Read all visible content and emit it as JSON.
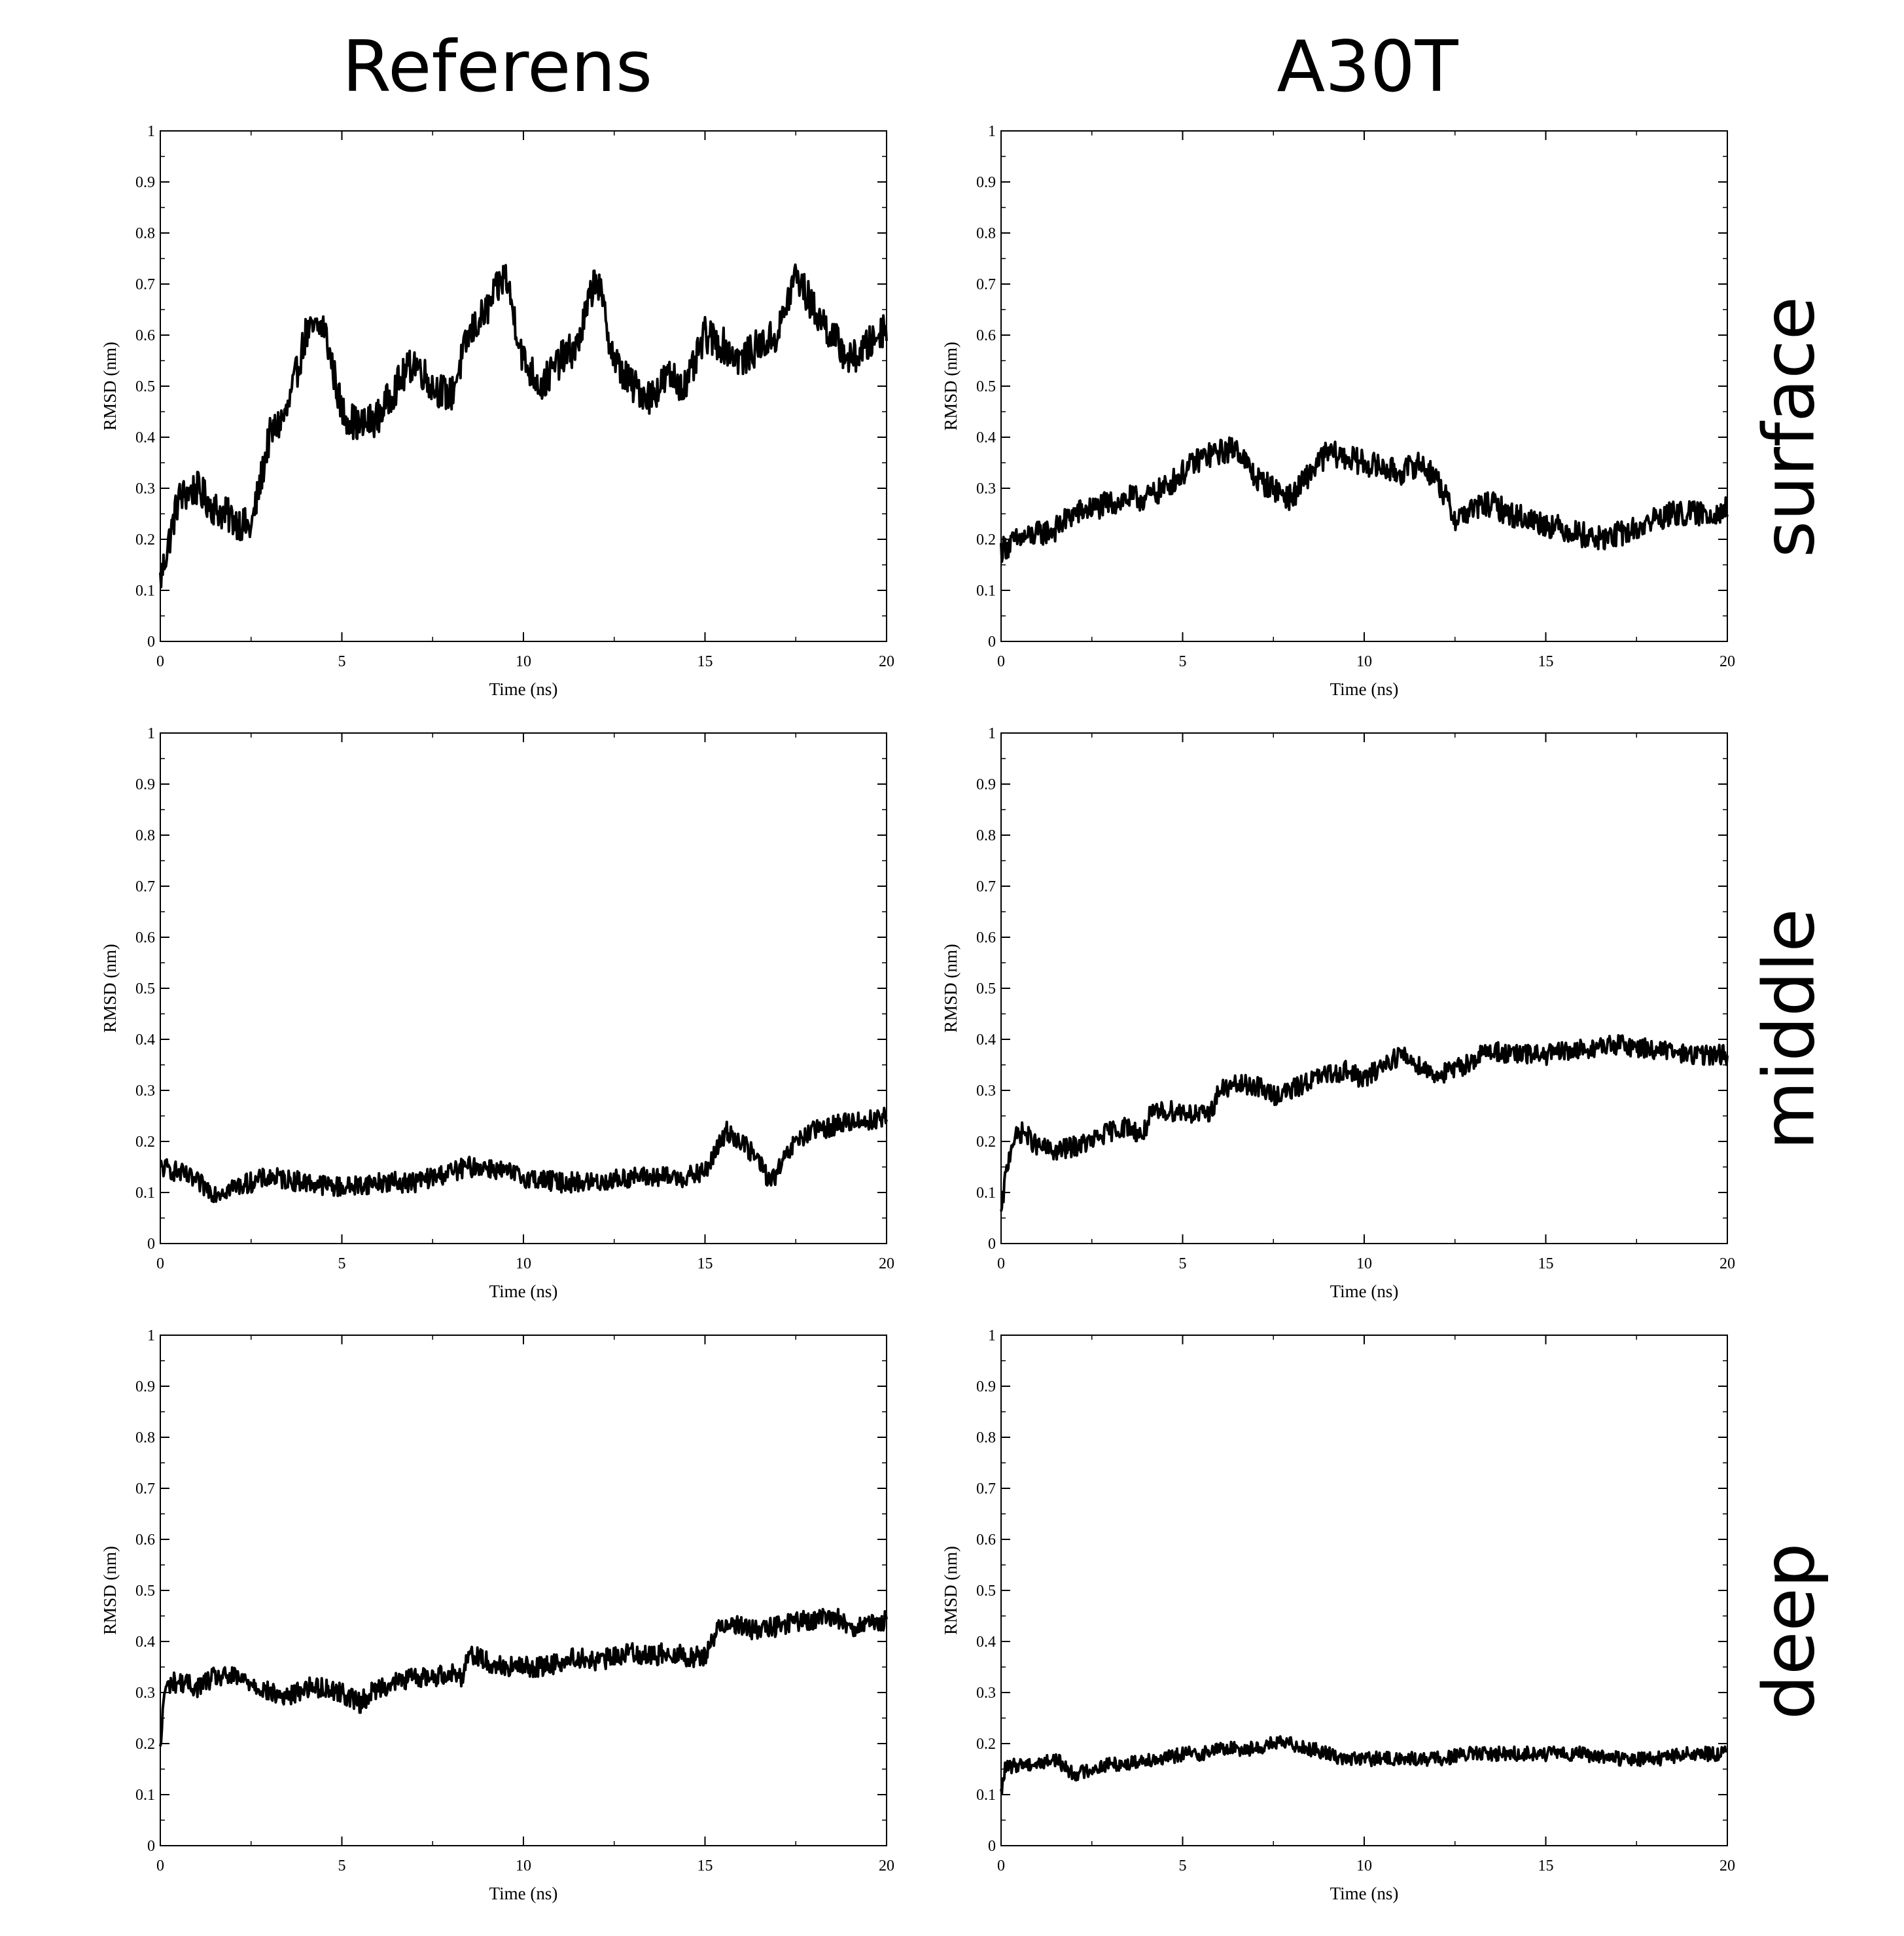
{
  "columns": [
    "Referens",
    "A30T"
  ],
  "rows": [
    "surface",
    "middle",
    "deep"
  ],
  "line_color": "#000000",
  "chart_data": [
    {
      "id": "referens-surface",
      "type": "line",
      "column": "Referens",
      "row": "surface",
      "xlabel": "Time (ns)",
      "ylabel": "RMSD (nm)",
      "xlim": [
        0,
        20
      ],
      "ylim": [
        0,
        1
      ],
      "xticks": [
        0,
        5,
        10,
        15,
        20
      ],
      "yticks": [
        0,
        0.1,
        0.2,
        0.3,
        0.4,
        0.5,
        0.6,
        0.7,
        0.8,
        0.9,
        1
      ],
      "x": [
        0,
        0.25,
        0.5,
        1,
        1.5,
        2,
        2.5,
        3,
        3.5,
        4,
        4.5,
        5,
        5.5,
        6,
        6.5,
        7,
        7.5,
        8,
        8.5,
        9,
        9.5,
        10,
        10.5,
        11,
        11.5,
        12,
        12.5,
        13,
        13.5,
        14,
        14.5,
        15,
        15.5,
        16,
        16.5,
        17,
        17.5,
        18,
        18.5,
        19,
        19.5,
        20
      ],
      "values": [
        0.12,
        0.2,
        0.28,
        0.3,
        0.26,
        0.24,
        0.22,
        0.4,
        0.45,
        0.6,
        0.62,
        0.45,
        0.42,
        0.44,
        0.5,
        0.55,
        0.5,
        0.48,
        0.6,
        0.65,
        0.72,
        0.55,
        0.5,
        0.55,
        0.58,
        0.72,
        0.55,
        0.5,
        0.48,
        0.52,
        0.5,
        0.6,
        0.58,
        0.55,
        0.58,
        0.6,
        0.72,
        0.65,
        0.6,
        0.55,
        0.58,
        0.62
      ],
      "noise": 0.035
    },
    {
      "id": "a30t-surface",
      "type": "line",
      "column": "A30T",
      "row": "surface",
      "xlabel": "Time (ns)",
      "ylabel": "RMSD (nm)",
      "xlim": [
        0,
        20
      ],
      "ylim": [
        0,
        1
      ],
      "xticks": [
        0,
        5,
        10,
        15,
        20
      ],
      "yticks": [
        0,
        0.1,
        0.2,
        0.3,
        0.4,
        0.5,
        0.6,
        0.7,
        0.8,
        0.9,
        1
      ],
      "x": [
        0,
        0.5,
        1,
        1.5,
        2,
        2.5,
        3,
        3.5,
        4,
        4.5,
        5,
        5.5,
        6,
        6.5,
        7,
        7.5,
        8,
        8.5,
        9,
        9.5,
        10,
        10.5,
        11,
        11.5,
        12,
        12.5,
        13,
        13.5,
        14,
        14.5,
        15,
        15.5,
        16,
        16.5,
        17,
        17.5,
        18,
        18.5,
        19,
        19.5,
        20
      ],
      "values": [
        0.18,
        0.2,
        0.21,
        0.22,
        0.25,
        0.26,
        0.27,
        0.28,
        0.28,
        0.3,
        0.33,
        0.36,
        0.37,
        0.38,
        0.32,
        0.3,
        0.28,
        0.33,
        0.37,
        0.36,
        0.35,
        0.34,
        0.33,
        0.35,
        0.32,
        0.24,
        0.26,
        0.27,
        0.25,
        0.24,
        0.23,
        0.22,
        0.21,
        0.2,
        0.21,
        0.22,
        0.24,
        0.25,
        0.25,
        0.25,
        0.26
      ],
      "noise": 0.025
    },
    {
      "id": "referens-middle",
      "type": "line",
      "column": "Referens",
      "row": "middle",
      "xlabel": "Time (ns)",
      "ylabel": "RMSD (nm)",
      "xlim": [
        0,
        20
      ],
      "ylim": [
        0,
        1
      ],
      "xticks": [
        0,
        5,
        10,
        15,
        20
      ],
      "yticks": [
        0,
        0.1,
        0.2,
        0.3,
        0.4,
        0.5,
        0.6,
        0.7,
        0.8,
        0.9,
        1
      ],
      "x": [
        0,
        0.5,
        1,
        1.5,
        2,
        3,
        4,
        5,
        6,
        7,
        8,
        8.5,
        9,
        9.5,
        10,
        11,
        12,
        13,
        14,
        14.5,
        15,
        15.3,
        15.6,
        16,
        16.5,
        16.8,
        17,
        17.5,
        18,
        18.5,
        19,
        19.5,
        20
      ],
      "values": [
        0.15,
        0.14,
        0.12,
        0.1,
        0.11,
        0.13,
        0.12,
        0.11,
        0.12,
        0.12,
        0.14,
        0.15,
        0.15,
        0.14,
        0.13,
        0.12,
        0.12,
        0.13,
        0.13,
        0.13,
        0.14,
        0.18,
        0.22,
        0.2,
        0.16,
        0.12,
        0.14,
        0.2,
        0.22,
        0.23,
        0.24,
        0.24,
        0.25
      ],
      "noise": 0.02
    },
    {
      "id": "a30t-middle",
      "type": "line",
      "column": "A30T",
      "row": "middle",
      "xlabel": "Time (ns)",
      "ylabel": "RMSD (nm)",
      "xlim": [
        0,
        20
      ],
      "ylim": [
        0,
        1
      ],
      "xticks": [
        0,
        5,
        10,
        15,
        20
      ],
      "yticks": [
        0,
        0.1,
        0.2,
        0.3,
        0.4,
        0.5,
        0.6,
        0.7,
        0.8,
        0.9,
        1
      ],
      "x": [
        0,
        0.1,
        0.3,
        0.6,
        1,
        1.5,
        2,
        2.5,
        3,
        3.5,
        3.9,
        4.1,
        4.5,
        5,
        5.5,
        5.8,
        6,
        6.5,
        7,
        7.5,
        8,
        8.5,
        9,
        9.5,
        10,
        10.5,
        11,
        11.5,
        12,
        12.5,
        13,
        13.5,
        14,
        15,
        16,
        17,
        18,
        19,
        20
      ],
      "values": [
        0.05,
        0.12,
        0.2,
        0.22,
        0.19,
        0.18,
        0.19,
        0.2,
        0.22,
        0.23,
        0.21,
        0.25,
        0.26,
        0.26,
        0.25,
        0.26,
        0.3,
        0.31,
        0.31,
        0.29,
        0.3,
        0.32,
        0.33,
        0.34,
        0.32,
        0.35,
        0.37,
        0.35,
        0.33,
        0.34,
        0.36,
        0.38,
        0.37,
        0.37,
        0.38,
        0.39,
        0.38,
        0.37,
        0.37
      ],
      "noise": 0.02
    },
    {
      "id": "referens-deep",
      "type": "line",
      "column": "Referens",
      "row": "deep",
      "xlabel": "Time (ns)",
      "ylabel": "RMSD (nm)",
      "xlim": [
        0,
        20
      ],
      "ylim": [
        0,
        1
      ],
      "xticks": [
        0,
        5,
        10,
        15,
        20
      ],
      "yticks": [
        0,
        0.1,
        0.2,
        0.3,
        0.4,
        0.5,
        0.6,
        0.7,
        0.8,
        0.9,
        1
      ],
      "x": [
        0,
        0.1,
        0.3,
        0.6,
        1,
        1.5,
        2,
        2.5,
        3,
        3.5,
        4,
        4.5,
        5,
        5.5,
        6,
        6.5,
        7,
        7.5,
        8,
        8.3,
        8.5,
        9,
        9.5,
        10,
        10.5,
        11,
        11.5,
        12,
        12.5,
        13,
        13.5,
        14,
        14.5,
        15,
        15.3,
        15.6,
        16,
        16.5,
        17,
        17.5,
        18,
        18.5,
        19,
        19.5,
        20
      ],
      "values": [
        0.18,
        0.3,
        0.32,
        0.32,
        0.31,
        0.33,
        0.33,
        0.32,
        0.3,
        0.29,
        0.31,
        0.31,
        0.3,
        0.28,
        0.31,
        0.32,
        0.33,
        0.33,
        0.34,
        0.33,
        0.38,
        0.36,
        0.35,
        0.35,
        0.35,
        0.36,
        0.37,
        0.36,
        0.37,
        0.38,
        0.37,
        0.38,
        0.37,
        0.37,
        0.42,
        0.44,
        0.43,
        0.42,
        0.43,
        0.44,
        0.44,
        0.45,
        0.43,
        0.43,
        0.44
      ],
      "noise": 0.02
    },
    {
      "id": "a30t-deep",
      "type": "line",
      "column": "A30T",
      "row": "deep",
      "xlabel": "Time (ns)",
      "ylabel": "RMSD (nm)",
      "xlim": [
        0,
        20
      ],
      "ylim": [
        0,
        1
      ],
      "xticks": [
        0,
        5,
        10,
        15,
        20
      ],
      "yticks": [
        0,
        0.1,
        0.2,
        0.3,
        0.4,
        0.5,
        0.6,
        0.7,
        0.8,
        0.9,
        1
      ],
      "x": [
        0,
        0.1,
        0.5,
        1,
        1.5,
        2,
        2.5,
        3,
        3.5,
        4,
        4.5,
        5,
        5.5,
        6,
        6.5,
        7,
        7.5,
        8,
        8.5,
        9,
        9.5,
        10,
        11,
        12,
        13,
        14,
        15,
        16,
        17,
        18,
        19,
        20
      ],
      "values": [
        0.1,
        0.15,
        0.16,
        0.16,
        0.17,
        0.14,
        0.15,
        0.16,
        0.16,
        0.17,
        0.17,
        0.18,
        0.18,
        0.19,
        0.19,
        0.19,
        0.2,
        0.2,
        0.19,
        0.18,
        0.17,
        0.17,
        0.17,
        0.17,
        0.18,
        0.18,
        0.18,
        0.18,
        0.17,
        0.17,
        0.18,
        0.18
      ],
      "noise": 0.014
    }
  ]
}
